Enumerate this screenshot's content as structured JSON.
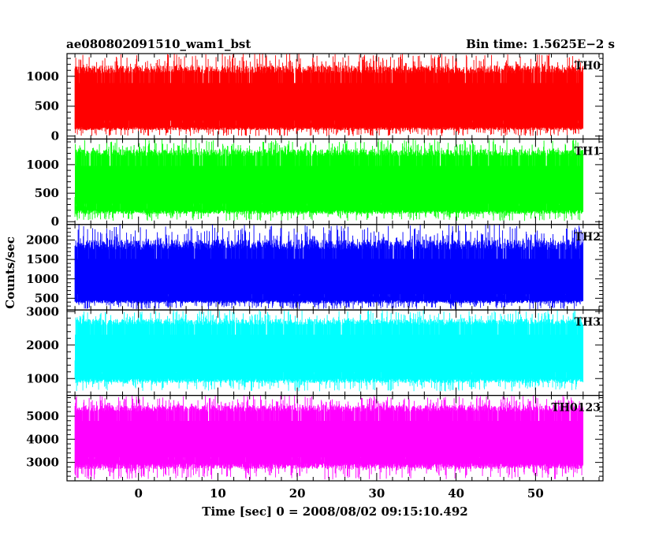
{
  "header": {
    "object_name": "ae080802091510_wam1_bst",
    "bin_time": "Bin time: 1.5625E−2 s"
  },
  "chart_data": {
    "type": "line",
    "xlabel": "Time [sec] 0 = 2008/08/02 09:15:10.492",
    "ylabel": "Counts/sec",
    "xlim": [
      -9,
      58.5
    ],
    "x_ticks": [
      0,
      10,
      20,
      30,
      40,
      50
    ],
    "x_range_data": [
      -8,
      56
    ],
    "bin_time_s": 0.015625,
    "panels": [
      {
        "name": "TH0",
        "color": "#ff0000",
        "ylim": [
          -50,
          1380
        ],
        "y_ticks": [
          0,
          500,
          1000
        ],
        "envelope": {
          "typical_low": 150,
          "typical_high": 1050,
          "min": 0,
          "max": 1380
        }
      },
      {
        "name": "TH1",
        "color": "#00ff00",
        "ylim": [
          -50,
          1450
        ],
        "y_ticks": [
          0,
          500,
          1000
        ],
        "envelope": {
          "typical_low": 200,
          "typical_high": 1150,
          "min": 10,
          "max": 1450
        }
      },
      {
        "name": "TH2",
        "color": "#0000ff",
        "ylim": [
          200,
          2400
        ],
        "y_ticks": [
          500,
          1000,
          1500,
          2000
        ],
        "envelope": {
          "typical_low": 450,
          "typical_high": 1750,
          "min": 220,
          "max": 2400
        }
      },
      {
        "name": "TH3",
        "color": "#00ffff",
        "ylim": [
          500,
          3050
        ],
        "y_ticks": [
          1000,
          2000,
          3000
        ],
        "envelope": {
          "typical_low": 1000,
          "typical_high": 2600,
          "min": 620,
          "max": 3050
        }
      },
      {
        "name": "TH0123",
        "color": "#ff00ff",
        "ylim": [
          2200,
          5900
        ],
        "y_ticks": [
          3000,
          4000,
          5000
        ],
        "envelope": {
          "typical_low": 2950,
          "typical_high": 5200,
          "min": 2250,
          "max": 5900
        }
      }
    ]
  }
}
